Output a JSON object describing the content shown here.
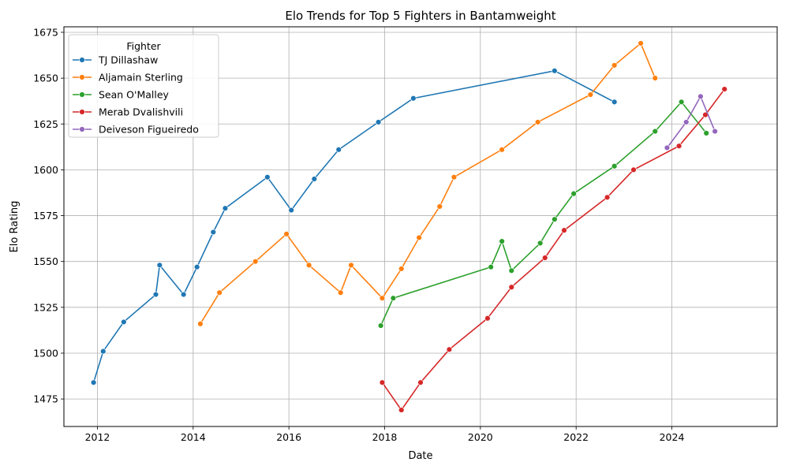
{
  "chart_data": {
    "type": "line",
    "title": "Elo Trends for Top 5 Fighters in Bantamweight",
    "xlabel": "Date",
    "ylabel": "Elo Rating",
    "xlim": [
      2011.3,
      2026.2
    ],
    "ylim": [
      1460,
      1678
    ],
    "xticks": [
      2012,
      2014,
      2016,
      2018,
      2020,
      2022,
      2024
    ],
    "yticks": [
      1475,
      1500,
      1525,
      1550,
      1575,
      1600,
      1625,
      1650,
      1675
    ],
    "grid": true,
    "legend": {
      "title": "Fighter",
      "placement": "top-left"
    },
    "series": [
      {
        "name": "TJ Dillashaw",
        "color": "#1f77b4",
        "points": [
          [
            2011.92,
            1484
          ],
          [
            2012.12,
            1501
          ],
          [
            2012.55,
            1517
          ],
          [
            2013.22,
            1532
          ],
          [
            2013.3,
            1548
          ],
          [
            2013.8,
            1532
          ],
          [
            2014.08,
            1547
          ],
          [
            2014.42,
            1566
          ],
          [
            2014.67,
            1579
          ],
          [
            2015.55,
            1596
          ],
          [
            2016.05,
            1578
          ],
          [
            2016.53,
            1595
          ],
          [
            2017.04,
            1611
          ],
          [
            2017.87,
            1626
          ],
          [
            2018.6,
            1639
          ],
          [
            2021.55,
            1654
          ],
          [
            2022.8,
            1637
          ]
        ]
      },
      {
        "name": "Aljamain Sterling",
        "color": "#ff7f0e",
        "points": [
          [
            2014.15,
            1516
          ],
          [
            2014.55,
            1533
          ],
          [
            2015.3,
            1550
          ],
          [
            2015.95,
            1565
          ],
          [
            2016.42,
            1548
          ],
          [
            2017.08,
            1533
          ],
          [
            2017.3,
            1548
          ],
          [
            2017.95,
            1530
          ],
          [
            2018.35,
            1546
          ],
          [
            2018.72,
            1563
          ],
          [
            2019.15,
            1580
          ],
          [
            2019.45,
            1596
          ],
          [
            2020.45,
            1611
          ],
          [
            2021.2,
            1626
          ],
          [
            2022.3,
            1641
          ],
          [
            2022.8,
            1657
          ],
          [
            2023.35,
            1669
          ],
          [
            2023.65,
            1650
          ]
        ]
      },
      {
        "name": "Sean O'Malley",
        "color": "#2ca02c",
        "points": [
          [
            2017.92,
            1515
          ],
          [
            2018.18,
            1530
          ],
          [
            2020.22,
            1547
          ],
          [
            2020.45,
            1561
          ],
          [
            2020.65,
            1545
          ],
          [
            2021.25,
            1560
          ],
          [
            2021.55,
            1573
          ],
          [
            2021.95,
            1587
          ],
          [
            2022.8,
            1602
          ],
          [
            2023.65,
            1621
          ],
          [
            2024.2,
            1637
          ],
          [
            2024.72,
            1620
          ]
        ]
      },
      {
        "name": "Merab Dvalishvili",
        "color": "#d62728",
        "points": [
          [
            2017.95,
            1484
          ],
          [
            2018.35,
            1469
          ],
          [
            2018.75,
            1484
          ],
          [
            2019.35,
            1502
          ],
          [
            2020.15,
            1519
          ],
          [
            2020.65,
            1536
          ],
          [
            2021.35,
            1552
          ],
          [
            2021.75,
            1567
          ],
          [
            2022.65,
            1585
          ],
          [
            2023.2,
            1600
          ],
          [
            2024.15,
            1613
          ],
          [
            2024.7,
            1630
          ],
          [
            2025.1,
            1644
          ]
        ]
      },
      {
        "name": "Deiveson Figueiredo",
        "color": "#9467bd",
        "points": [
          [
            2023.9,
            1612
          ],
          [
            2024.3,
            1626
          ],
          [
            2024.6,
            1640
          ],
          [
            2024.9,
            1621
          ]
        ]
      }
    ]
  }
}
